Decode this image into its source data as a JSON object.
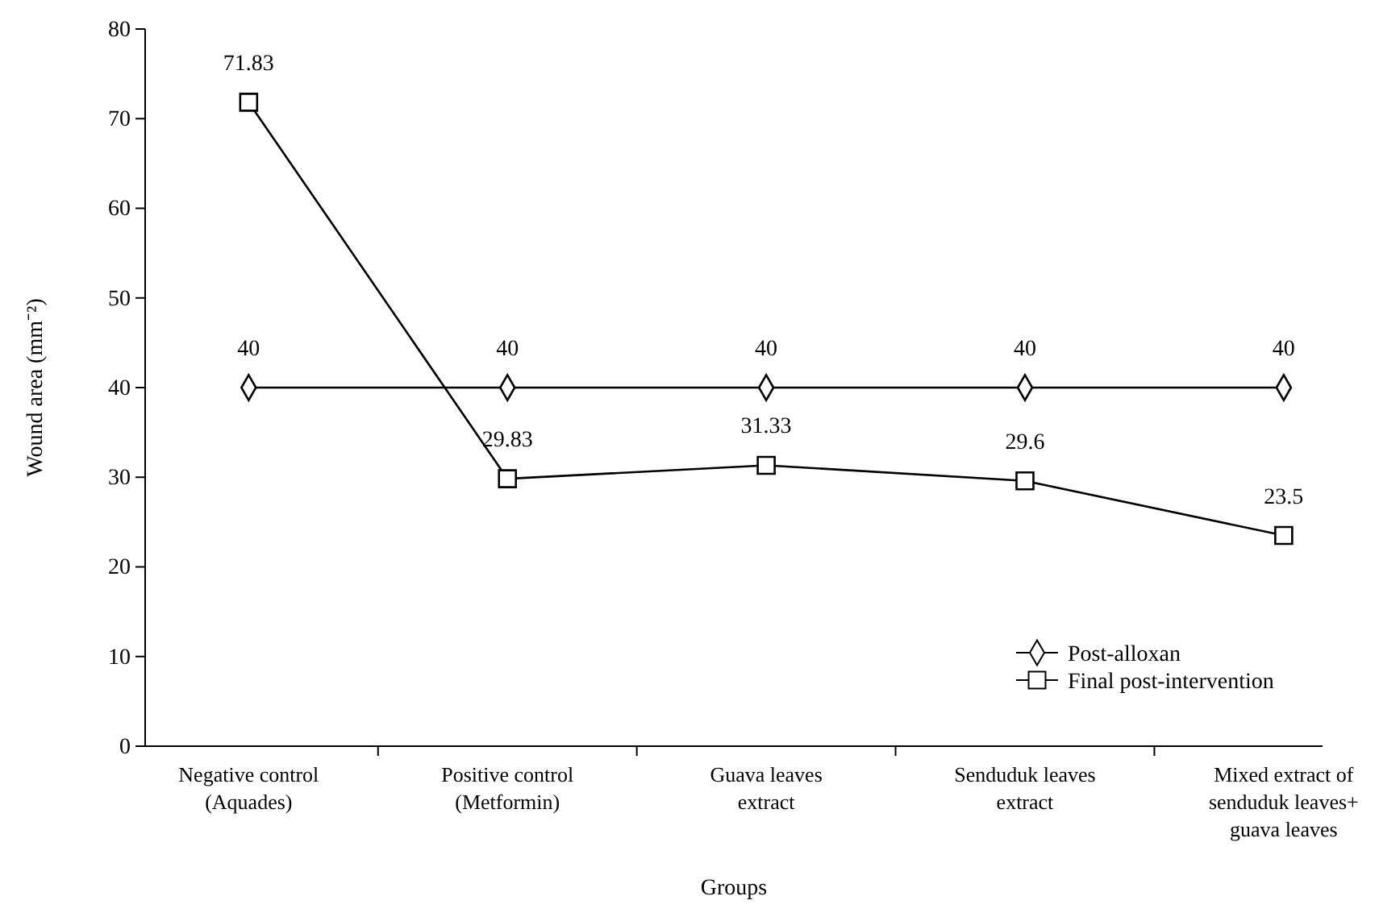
{
  "chart_data": {
    "type": "line",
    "xlabel": "Groups",
    "ylabel": "Wound area (mm⁻²)",
    "categories": [
      "Negative control\n(Aquades)",
      "Positive control\n(Metformin)",
      "Guava leaves\nextract",
      "Senduduk leaves\nextract",
      "Mixed extract of\nsenduduk leaves+\nguava leaves"
    ],
    "series": [
      {
        "name": "Post-alloxan",
        "color": "#000000",
        "marker": "diamond",
        "values": [
          40,
          40,
          40,
          40,
          40
        ]
      },
      {
        "name": "Final post-intervention",
        "color": "#000000",
        "marker": "square",
        "values": [
          71.83,
          29.83,
          31.33,
          29.6,
          23.5
        ]
      }
    ],
    "ylim": [
      0,
      80
    ],
    "yticks": [
      0,
      10,
      20,
      30,
      40,
      50,
      60,
      70,
      80
    ],
    "data_labels": true,
    "legend": "bottom right",
    "grid": false,
    "line_style": "solid"
  }
}
